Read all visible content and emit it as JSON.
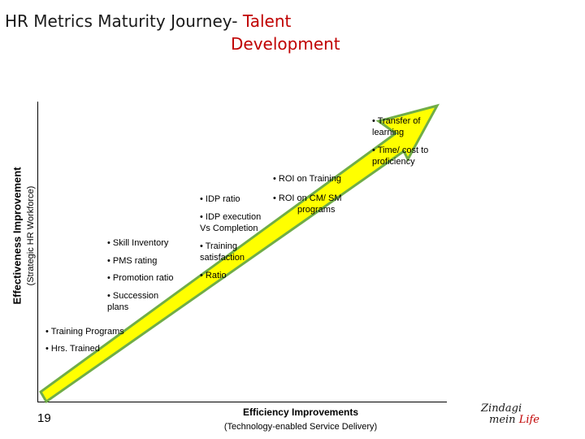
{
  "title": {
    "part1": "HR Metrics Maturity Journey- ",
    "part2_line1": "Talent",
    "part2_line2": "Development"
  },
  "y_axis": {
    "main": "Effectiveness Improvement",
    "sub": "(Strategic HR Workforce)"
  },
  "x_axis": {
    "main": "Efficiency Improvements",
    "sub": "(Technology-enabled Service Delivery)"
  },
  "page_number": "19",
  "logo": {
    "line1": "Zindagi",
    "line2a": "mein ",
    "line2b": "Life"
  },
  "colors": {
    "arrow_fill": "#ffff00",
    "arrow_stroke": "#70ad47",
    "accent": "#c00000"
  },
  "metrics": [
    {
      "lines": [
        "• Transfer of",
        "learning"
      ]
    },
    {
      "lines": [
        "• Time/ cost to",
        "proficiency"
      ]
    },
    {
      "lines": [
        "• ROI on Training"
      ]
    },
    {
      "lines": [
        "• IDP ratio"
      ]
    },
    {
      "lines": [
        "• ROI on CM/ SM",
        "programs"
      ]
    },
    {
      "lines": [
        "• IDP execution",
        "Vs Completion"
      ]
    },
    {
      "lines": [
        "• Skill Inventory"
      ]
    },
    {
      "lines": [
        "• Training",
        "satisfaction"
      ]
    },
    {
      "lines": [
        "• PMS rating"
      ]
    },
    {
      "lines": [
        "• Promotion ratio"
      ]
    },
    {
      "lines": [
        "• Ratio"
      ]
    },
    {
      "lines": [
        "• Succession",
        "plans"
      ]
    },
    {
      "lines": [
        "• Training Programs"
      ]
    },
    {
      "lines": [
        "• Hrs. Trained"
      ]
    }
  ]
}
